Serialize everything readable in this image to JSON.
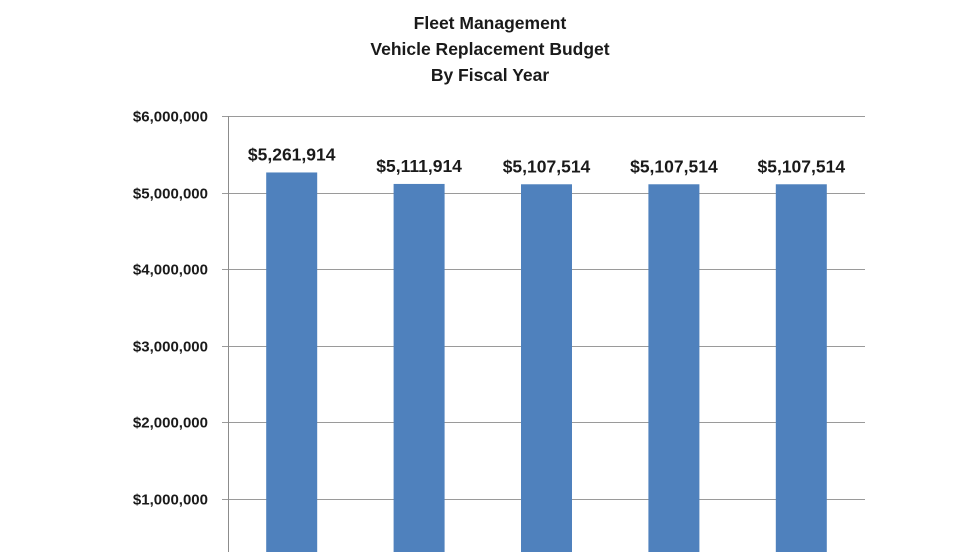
{
  "chart_data": {
    "type": "bar",
    "title_lines": [
      "Fleet Management",
      "Vehicle Replacement Budget",
      "By Fiscal Year"
    ],
    "categories": [
      "",
      "",
      "",
      "",
      ""
    ],
    "values": [
      5261914,
      5111914,
      5107514,
      5107514,
      5107514
    ],
    "data_labels": [
      "$5,261,914",
      "$5,111,914",
      "$5,107,514",
      "$5,107,514",
      "$5,107,514"
    ],
    "ylim": [
      0,
      6000000
    ],
    "yticks": [
      1000000,
      2000000,
      3000000,
      4000000,
      5000000,
      6000000
    ],
    "ytick_labels": [
      "$1,000,000",
      "$2,000,000",
      "$3,000,000",
      "$4,000,000",
      "$5,000,000",
      "$6,000,000"
    ],
    "bar_color": "#4f81bd",
    "grid": true,
    "legend": "none"
  }
}
